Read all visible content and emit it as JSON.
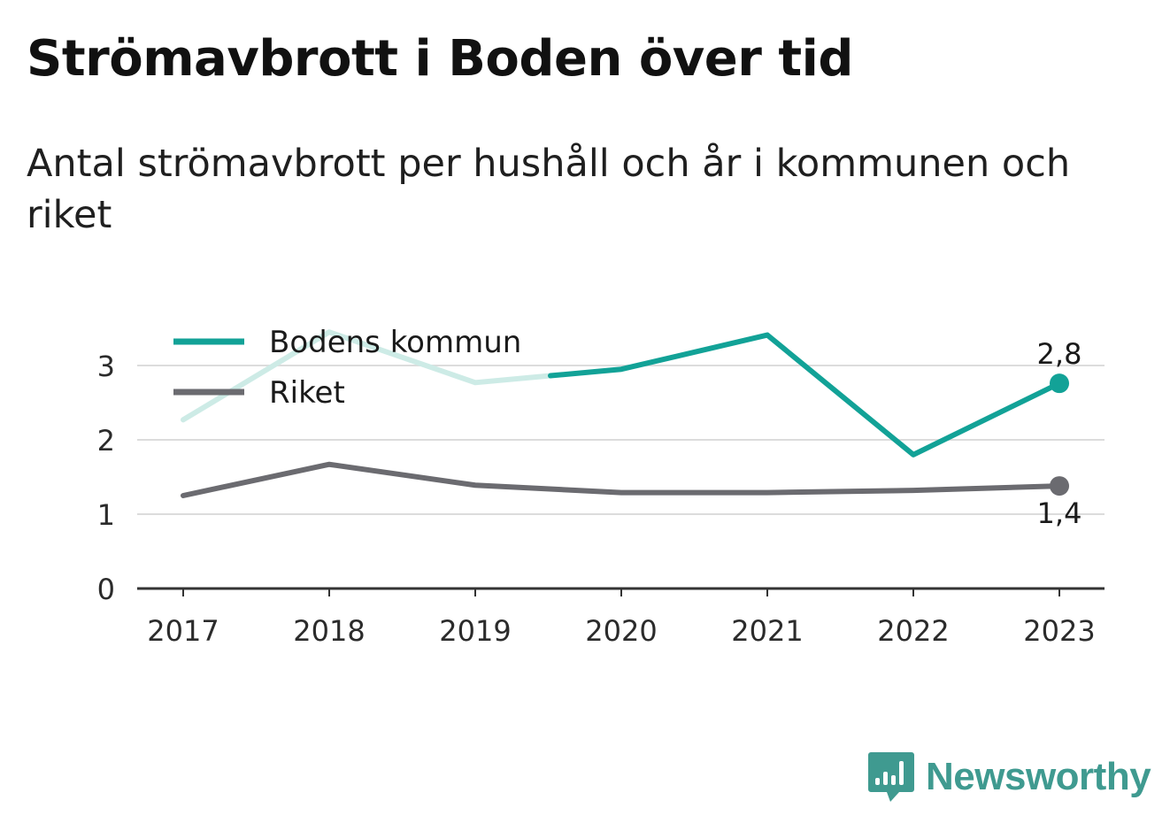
{
  "header": {
    "title": "Strömavbrott i Boden över tid",
    "subtitle": "Antal strömavbrott per hushåll och år i kommunen och riket"
  },
  "brand": {
    "name": "Newsworthy",
    "icon": "newsworthy-logo-icon",
    "color": "#3f9a90"
  },
  "chart_data": {
    "type": "line",
    "x": [
      2017,
      2018,
      2019,
      2020,
      2021,
      2022,
      2023
    ],
    "ylim": [
      0,
      3.5
    ],
    "yticks": [
      0,
      1,
      2,
      3
    ],
    "grid": true,
    "legend_position": "top-left",
    "series": [
      {
        "name": "Bodens kommun",
        "color": "#12a297",
        "faded_color": "#cdebe6",
        "values": [
          2.27,
          3.45,
          2.77,
          2.95,
          3.41,
          1.8,
          2.76
        ],
        "end_label": "2,8"
      },
      {
        "name": "Riket",
        "color": "#6b6b70",
        "values": [
          1.25,
          1.67,
          1.39,
          1.29,
          1.29,
          1.32,
          1.38
        ],
        "end_label": "1,4"
      }
    ]
  }
}
